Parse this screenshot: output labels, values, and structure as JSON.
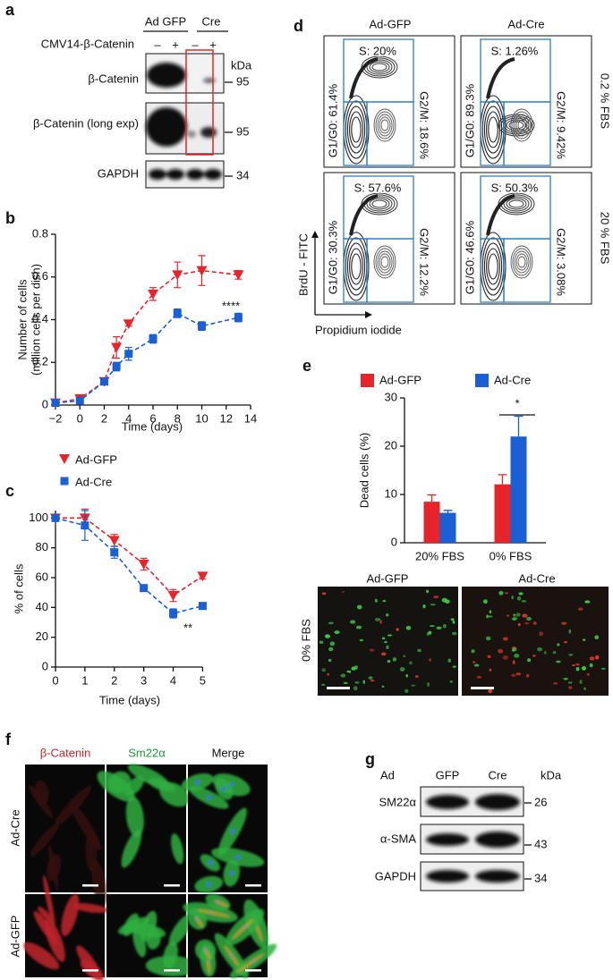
{
  "chart_data": [
    {
      "type": "line",
      "panel_label": "b",
      "xlabel": "Time (days)",
      "ylabel": [
        "Number of cells",
        "(million cells per dish)"
      ],
      "x": [
        -2,
        0,
        2,
        3,
        4,
        6,
        8,
        10,
        13
      ],
      "series": [
        {
          "name": "Ad-GFP",
          "color": "#e8242b",
          "marker": "triangle-down",
          "values": [
            0.01,
            0.03,
            0.11,
            0.27,
            0.38,
            0.52,
            0.61,
            0.63,
            0.61
          ],
          "errors": [
            0.01,
            0.01,
            0.01,
            0.05,
            0.01,
            0.03,
            0.06,
            0.07,
            0.02
          ]
        },
        {
          "name": "Ad-Cre",
          "color": "#1a5fd6",
          "marker": "square",
          "values": [
            0.01,
            0.02,
            0.11,
            0.18,
            0.24,
            0.31,
            0.43,
            0.37,
            0.41
          ],
          "errors": [
            0.01,
            0.01,
            0.01,
            0.02,
            0.03,
            0.02,
            0.02,
            0.02,
            0.02
          ]
        }
      ],
      "xlim": [
        -2,
        14
      ],
      "ylim": [
        0,
        0.8
      ],
      "xticks": [
        {
          "value": -2,
          "label": "−2"
        },
        0,
        2,
        4,
        6,
        8,
        10,
        12,
        14
      ],
      "yticks": [
        0,
        0.2,
        0.4,
        0.6,
        0.8
      ],
      "linestyle": "dashed",
      "annotations": [
        "****"
      ]
    },
    {
      "type": "line",
      "panel_label": "c",
      "xlabel": "Time (days)",
      "ylabel": [
        "% of cells"
      ],
      "x": [
        0,
        1,
        2,
        3,
        4,
        5
      ],
      "series": [
        {
          "name": "Ad-GFP",
          "color": "#e8242b",
          "marker": "triangle-down",
          "values": [
            100,
            100,
            85,
            69,
            48,
            61
          ],
          "errors": [
            2,
            6,
            4,
            4,
            4,
            2
          ]
        },
        {
          "name": "Ad-Cre",
          "color": "#1a5fd6",
          "marker": "square",
          "values": [
            100,
            95,
            77,
            53,
            36,
            41
          ],
          "errors": [
            2,
            10,
            4,
            2,
            3,
            1
          ]
        }
      ],
      "xlim": [
        0,
        5.2
      ],
      "ylim": [
        0,
        105
      ],
      "xticks": [
        0,
        1,
        2,
        3,
        4,
        5
      ],
      "yticks": [
        0,
        20,
        40,
        60,
        80,
        100
      ],
      "linestyle": "dashed",
      "annotations": [
        "**"
      ]
    },
    {
      "type": "bar",
      "panel_label": "e",
      "ylabel": [
        "Dead cells (%)"
      ],
      "categories": [
        "20% FBS",
        "0% FBS"
      ],
      "series": [
        {
          "name": "Ad-GFP",
          "color": "#e8242b",
          "values": [
            8.5,
            12.1
          ],
          "errors": [
            1.4,
            2.0
          ]
        },
        {
          "name": "Ad-Cre",
          "color": "#1a5fd6",
          "values": [
            6.2,
            22
          ],
          "errors": [
            0.5,
            4.2
          ]
        }
      ],
      "ylim": [
        0,
        30
      ],
      "yticks": [
        0,
        10,
        20,
        30
      ],
      "annotations": [
        "*"
      ]
    }
  ],
  "panel_a": {
    "panel_label": "a",
    "groups": [
      "Ad GFP",
      "Cre"
    ],
    "treatment": "CMV14-β-Catenin",
    "lanes": [
      "–",
      "+",
      "–",
      "+"
    ],
    "unit": "kDa",
    "blots": [
      {
        "label": "β-Catenin",
        "size": "95"
      },
      {
        "label": "β-Catenin (long exp)",
        "size": "95"
      },
      {
        "label": "GAPDH",
        "size": "34"
      }
    ]
  },
  "panel_d": {
    "panel_label": "d",
    "columns": [
      "Ad-GFP",
      "Ad-Cre"
    ],
    "rows": [
      "0.2 % FBS",
      "20 % FBS"
    ],
    "y_axis_label": "BrdU - FITC",
    "x_axis_label": "Propidium iodide",
    "plots": [
      {
        "s": "S: 20%",
        "g1": "G1/G0: 61.4%",
        "g2m": "G2/M: 18.6%"
      },
      {
        "s": "S: 1.26%",
        "g1": "G1/G0: 89.3%",
        "g2m": "G2/M: 9.42%"
      },
      {
        "s": "S: 57.6%",
        "g1": "G1/G0: 30.3%",
        "g2m": "G2/M: 12.2%"
      },
      {
        "s": "S: 50.3%",
        "g1": "G1/G0: 46.6%",
        "g2m": "G2/M: 3.08%"
      }
    ]
  },
  "panel_e_micrographs": {
    "titles": [
      "Ad-GFP",
      "Ad-Cre"
    ],
    "row_label": "0% FBS"
  },
  "panel_f": {
    "panel_label": "f",
    "columns": [
      "β-Catenin",
      "Sm22α",
      "Merge"
    ],
    "rows": [
      "Ad-Cre",
      "Ad-GFP"
    ]
  },
  "panel_g": {
    "panel_label": "g",
    "header": "Ad",
    "lanes": [
      "GFP",
      "Cre"
    ],
    "unit": "kDa",
    "blots": [
      {
        "label": "SM22α",
        "size": "26"
      },
      {
        "label": "α-SMA",
        "size": "43"
      },
      {
        "label": "GAPDH",
        "size": "34"
      }
    ]
  }
}
